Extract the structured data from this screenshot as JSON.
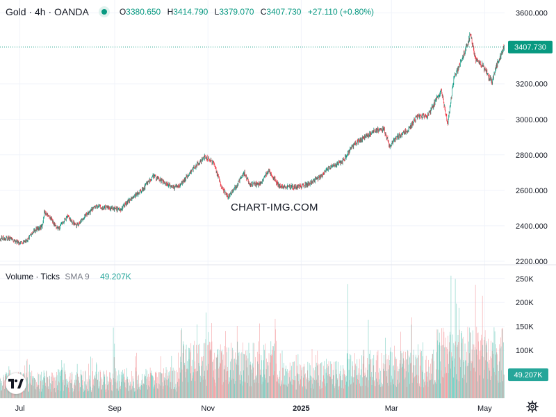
{
  "header": {
    "symbol": "Gold · 4h · OANDA",
    "open_label": "O",
    "open": "3380.650",
    "high_label": "H",
    "high": "3414.790",
    "low_label": "L",
    "low": "3379.070",
    "close_label": "C",
    "close": "3407.730",
    "change": "+27.110 (+0.80%)"
  },
  "volume_header": {
    "title": "Volume · Ticks",
    "sma": "SMA 9",
    "value": "49.207K"
  },
  "watermark": "CHART-IMG.COM",
  "colors": {
    "up": "#089981",
    "down": "#f23645",
    "vol_up": "#7ccfc3",
    "vol_down": "#f5a3a6",
    "grid": "#f0f3fa"
  },
  "chart_data": [
    {
      "type": "candlestick",
      "interval": "4h",
      "y_ticks": [
        "3600.000",
        "3200.000",
        "3000.000",
        "2800.000",
        "2600.000",
        "2400.000",
        "2200.000"
      ],
      "x_ticks": [
        "Jul",
        "Sep",
        "Nov",
        "2025",
        "Mar",
        "May"
      ],
      "last_price": "3407.730",
      "ylim": [
        2180,
        3630
      ],
      "path": [
        [
          "2024-06-18",
          2330
        ],
        [
          "2024-06-25",
          2330
        ],
        [
          "2024-07-01",
          2300
        ],
        [
          "2024-07-05",
          2310
        ],
        [
          "2024-07-10",
          2370
        ],
        [
          "2024-07-16",
          2400
        ],
        [
          "2024-07-17",
          2480
        ],
        [
          "2024-07-22",
          2430
        ],
        [
          "2024-07-26",
          2380
        ],
        [
          "2024-08-01",
          2450
        ],
        [
          "2024-08-07",
          2400
        ],
        [
          "2024-08-12",
          2450
        ],
        [
          "2024-08-20",
          2510
        ],
        [
          "2024-08-28",
          2500
        ],
        [
          "2024-09-05",
          2490
        ],
        [
          "2024-09-12",
          2560
        ],
        [
          "2024-09-19",
          2600
        ],
        [
          "2024-09-26",
          2680
        ],
        [
          "2024-10-03",
          2650
        ],
        [
          "2024-10-10",
          2610
        ],
        [
          "2024-10-16",
          2650
        ],
        [
          "2024-10-23",
          2730
        ],
        [
          "2024-10-30",
          2790
        ],
        [
          "2024-11-05",
          2750
        ],
        [
          "2024-11-10",
          2620
        ],
        [
          "2024-11-14",
          2560
        ],
        [
          "2024-11-20",
          2630
        ],
        [
          "2024-11-25",
          2700
        ],
        [
          "2024-11-28",
          2640
        ],
        [
          "2024-12-05",
          2630
        ],
        [
          "2024-12-11",
          2710
        ],
        [
          "2024-12-18",
          2620
        ],
        [
          "2024-12-24",
          2620
        ],
        [
          "2024-12-31",
          2620
        ],
        [
          "2025-01-07",
          2640
        ],
        [
          "2025-01-14",
          2680
        ],
        [
          "2025-01-21",
          2740
        ],
        [
          "2025-01-28",
          2760
        ],
        [
          "2025-02-04",
          2850
        ],
        [
          "2025-02-11",
          2900
        ],
        [
          "2025-02-18",
          2930
        ],
        [
          "2025-02-24",
          2950
        ],
        [
          "2025-02-28",
          2850
        ],
        [
          "2025-03-05",
          2900
        ],
        [
          "2025-03-12",
          2940
        ],
        [
          "2025-03-18",
          3020
        ],
        [
          "2025-03-25",
          3020
        ],
        [
          "2025-03-31",
          3120
        ],
        [
          "2025-04-03",
          3160
        ],
        [
          "2025-04-07",
          2970
        ],
        [
          "2025-04-11",
          3230
        ],
        [
          "2025-04-16",
          3330
        ],
        [
          "2025-04-22",
          3480
        ],
        [
          "2025-04-25",
          3340
        ],
        [
          "2025-04-30",
          3300
        ],
        [
          "2025-05-06",
          3210
        ],
        [
          "2025-05-10",
          3330
        ],
        [
          "2025-05-14",
          3407.73
        ]
      ]
    },
    {
      "type": "bar",
      "name": "Volume",
      "y_ticks": [
        "250K",
        "200K",
        "150K",
        "100K"
      ],
      "ylim": [
        0,
        270000
      ],
      "last_value": "49.207K",
      "levels": [
        {
          "from": "2024-06-18",
          "to": "2024-08-31",
          "typical": 50000,
          "peak": 90000
        },
        {
          "from": "2024-09-01",
          "to": "2024-10-14",
          "typical": 55000,
          "peak": 100000
        },
        {
          "from": "2024-10-15",
          "to": "2024-12-15",
          "typical": 100000,
          "peak": 190000
        },
        {
          "from": "2024-12-16",
          "to": "2025-01-31",
          "typical": 65000,
          "peak": 110000
        },
        {
          "from": "2025-02-01",
          "to": "2025-03-31",
          "typical": 85000,
          "peak": 170000
        },
        {
          "from": "2025-04-01",
          "to": "2025-05-14",
          "typical": 125000,
          "peak": 260000
        }
      ]
    }
  ]
}
